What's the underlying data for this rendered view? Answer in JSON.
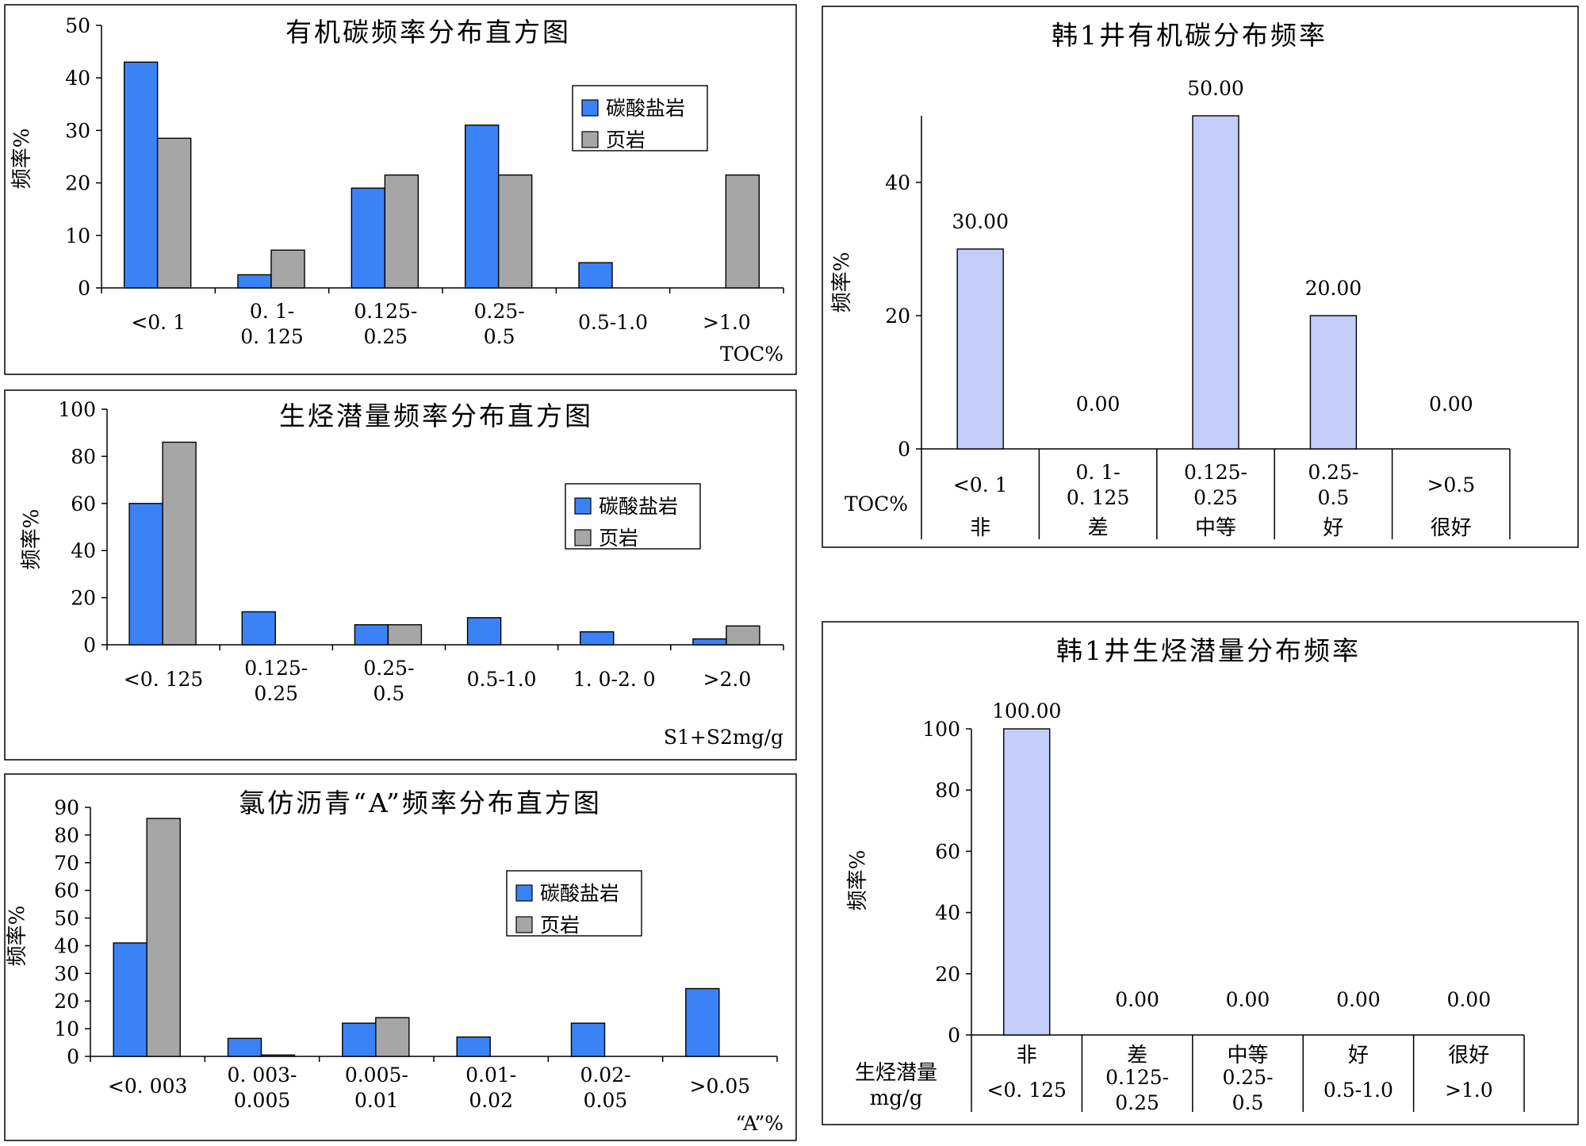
{
  "colors": {
    "carbonate": "#3b82f6",
    "shale": "#a6a6a6",
    "well_bar": "#c4ccfa",
    "frame": "#000000"
  },
  "chart_data": [
    {
      "id": "toc",
      "type": "bar",
      "title": "有机碳频率分布直方图",
      "ylabel": "频率%",
      "xlabel": "TOC%",
      "ylim": [
        0,
        50
      ],
      "yticks": [
        0,
        10,
        20,
        30,
        40,
        50
      ],
      "categories": [
        [
          "<0. 1"
        ],
        [
          "0. 1-",
          "0. 125"
        ],
        [
          "0.125-",
          "0.25"
        ],
        [
          "0.25-",
          "0.5"
        ],
        [
          "0.5-1.0"
        ],
        [
          ">1.0"
        ]
      ],
      "series": [
        {
          "name": "碳酸盐岩",
          "color": "#3b82f6",
          "values": [
            43,
            2.5,
            19,
            31,
            4.8,
            0
          ]
        },
        {
          "name": "页岩",
          "color": "#a6a6a6",
          "values": [
            28.5,
            7.2,
            21.5,
            21.5,
            0,
            21.5
          ]
        }
      ],
      "legend": "top-right"
    },
    {
      "id": "hc",
      "type": "bar",
      "title": "生烃潜量频率分布直方图",
      "ylabel": "频率%",
      "xlabel": "S1+S2mg/g",
      "ylim": [
        0,
        100
      ],
      "yticks": [
        0,
        20,
        40,
        60,
        80,
        100
      ],
      "categories": [
        [
          "<0. 125"
        ],
        [
          "0.125-",
          "0.25"
        ],
        [
          "0.25-",
          "0.5"
        ],
        [
          "0.5-1.0"
        ],
        [
          "1. 0-2. 0"
        ],
        [
          ">2.0"
        ]
      ],
      "series": [
        {
          "name": "碳酸盐岩",
          "color": "#3b82f6",
          "values": [
            60,
            14,
            8.5,
            11.5,
            5.5,
            2.5
          ]
        },
        {
          "name": "页岩",
          "color": "#a6a6a6",
          "values": [
            86,
            0,
            8.5,
            0,
            0,
            8
          ]
        }
      ],
      "legend": "top-right"
    },
    {
      "id": "asphalt",
      "type": "bar",
      "title": "氯仿沥青“A”频率分布直方图",
      "ylabel": "频率%",
      "xlabel": "“A”%",
      "ylim": [
        0,
        90
      ],
      "yticks": [
        0,
        10,
        20,
        30,
        40,
        50,
        60,
        70,
        80,
        90
      ],
      "categories": [
        [
          "<0. 003"
        ],
        [
          "0. 003-",
          "0.005"
        ],
        [
          "0.005-",
          "0.01"
        ],
        [
          "0.01-",
          "0.02"
        ],
        [
          "0.02-",
          "0.05"
        ],
        [
          ">0.05"
        ]
      ],
      "series": [
        {
          "name": "碳酸盐岩",
          "color": "#3b82f6",
          "values": [
            41,
            6.5,
            12,
            7,
            12,
            24.5
          ]
        },
        {
          "name": "页岩",
          "color": "#a6a6a6",
          "values": [
            86,
            0.5,
            14,
            0,
            0,
            0
          ]
        }
      ],
      "legend": "top-right"
    },
    {
      "id": "well_toc",
      "type": "bar",
      "title": "韩1井有机碳分布频率",
      "ylabel": "频率%",
      "row_label": "TOC%",
      "ylim": [
        0,
        50
      ],
      "yticks": [
        0,
        20,
        40
      ],
      "categories": [
        [
          "<0. 1"
        ],
        [
          "0. 1-",
          "0. 125"
        ],
        [
          "0.125-",
          "0.25"
        ],
        [
          "0.25-",
          "0.5"
        ],
        [
          ">0.5"
        ]
      ],
      "grades": [
        "非",
        "差",
        "中等",
        "好",
        "很好"
      ],
      "values": [
        30,
        0,
        50,
        20,
        0
      ],
      "value_labels": [
        "30.00",
        "0.00",
        "50.00",
        "20.00",
        "0.00"
      ]
    },
    {
      "id": "well_hc",
      "type": "bar",
      "title": "韩1井生烃潜量分布频率",
      "ylabel": "频率%",
      "row_label": [
        "生烃潜量",
        "mg/g"
      ],
      "ylim": [
        0,
        100
      ],
      "yticks": [
        0,
        20,
        40,
        60,
        80,
        100
      ],
      "grades": [
        "非",
        "差",
        "中等",
        "好",
        "很好"
      ],
      "categories": [
        [
          "<0. 125"
        ],
        [
          "0.125-",
          "0.25"
        ],
        [
          "0.25-",
          "0.5"
        ],
        [
          "0.5-1.0"
        ],
        [
          ">1.0"
        ]
      ],
      "values": [
        100,
        0,
        0,
        0,
        0
      ],
      "value_labels": [
        "100.00",
        "0.00",
        "0.00",
        "0.00",
        "0.00"
      ]
    }
  ]
}
